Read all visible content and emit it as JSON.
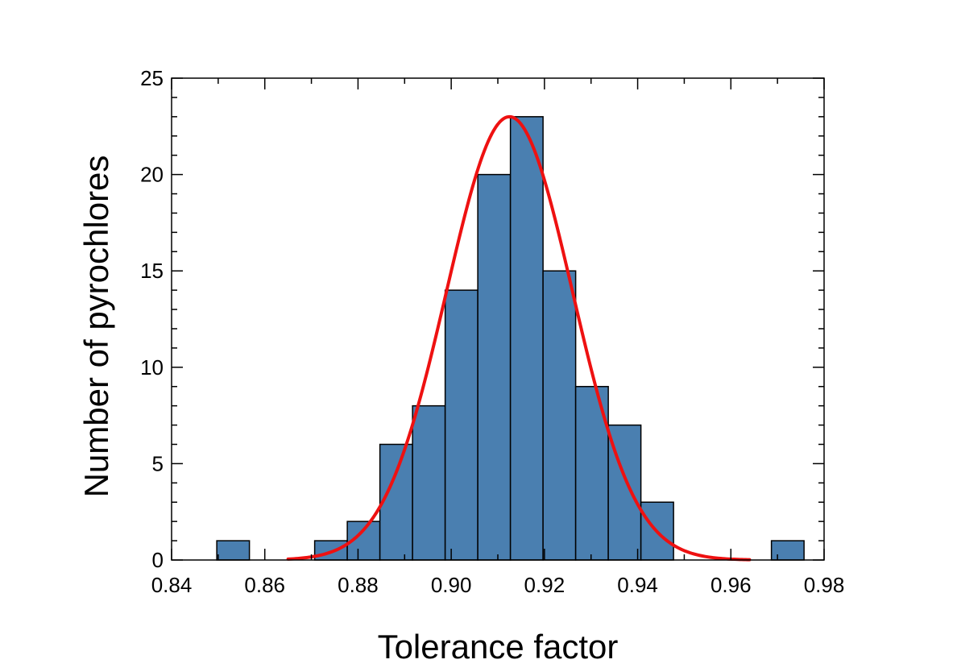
{
  "chart_data": {
    "type": "bar",
    "title": "",
    "xlabel": "Tolerance factor",
    "ylabel": "Number of pyrochlores",
    "xlim": [
      0.84,
      0.98
    ],
    "ylim": [
      0,
      25
    ],
    "x_ticks": [
      "0.84",
      "0.86",
      "0.88",
      "0.90",
      "0.92",
      "0.94",
      "0.96",
      "0.98"
    ],
    "y_ticks": [
      "0",
      "5",
      "10",
      "15",
      "20",
      "25"
    ],
    "bin_width": 0.007,
    "bin_edges": [
      0.8497,
      0.8567,
      0.8637,
      0.8707,
      0.8777,
      0.8847,
      0.8917,
      0.8987,
      0.9057,
      0.9127,
      0.9197,
      0.9267,
      0.9337,
      0.9407,
      0.9477,
      0.9547,
      0.9617,
      0.9687,
      0.9757
    ],
    "counts": [
      1,
      0,
      0,
      1,
      2,
      6,
      8,
      14,
      20,
      23,
      15,
      9,
      7,
      3,
      0,
      0,
      0,
      1
    ],
    "fit": {
      "type": "gaussian",
      "amplitude": 23,
      "mean": 0.9125,
      "sigma": 0.0135,
      "x_range": [
        0.865,
        0.964
      ],
      "color": "#ee1111"
    },
    "bar_color": "#4a7fb0",
    "grid": false,
    "legend": "none"
  }
}
